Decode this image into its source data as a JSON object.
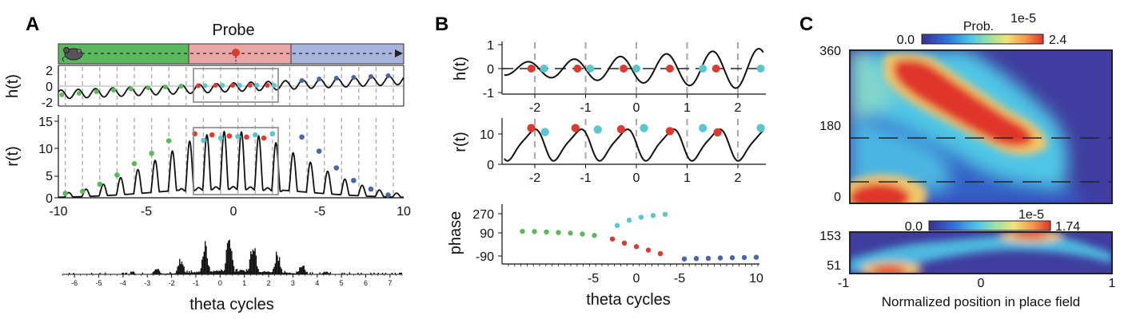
{
  "panels": {
    "A": {
      "label": "A",
      "track_title": "Probe",
      "h_ylabel": "h(t)",
      "r_ylabel": "r(t)",
      "xlabel": "theta cycles",
      "h_yticks": [
        "2",
        "0",
        "-2"
      ],
      "r_yticks": [
        "15",
        "10",
        "5",
        "0"
      ],
      "xticks": [
        "-10",
        "-5",
        "0",
        "-5",
        "10"
      ],
      "hist_xticks": [
        "-6",
        "-5",
        "-4",
        "-3",
        "-2",
        "-1",
        "0",
        "1",
        "2",
        "3",
        "4",
        "5",
        "6",
        "7"
      ]
    },
    "B": {
      "label": "B",
      "h_ylabel": "h(t)",
      "r_ylabel": "r(t)",
      "phase_ylabel": "phase",
      "xlabel": "theta cycles",
      "h_yticks": [
        "1",
        "0",
        "-1"
      ],
      "r_yticks": [
        "10",
        "0"
      ],
      "top_xticks": [
        "-2",
        "-1",
        "0",
        "1",
        "2"
      ],
      "phase_yticks": [
        "270",
        "90",
        "-90"
      ],
      "phase_xticks": [
        "-5",
        "0",
        "-5",
        "10"
      ]
    },
    "C": {
      "label": "C",
      "colorbar1": {
        "title": "Prob.",
        "exp": "1e-5",
        "min": "0.0",
        "max": "2.4"
      },
      "colorbar2": {
        "exp": "1e-5",
        "min": "0.0",
        "max": "1.74"
      },
      "top_yticks": [
        "360",
        "180",
        "0"
      ],
      "bottom_yticks": [
        "153",
        "51"
      ],
      "xticks": [
        "-1",
        "0",
        "1"
      ],
      "xlabel": "Normalized position in place field"
    }
  },
  "colors": {
    "green": "#5cb85c",
    "red": "#dd3a30",
    "cyan": "#5bc6cc",
    "blue": "#4a66a8",
    "track_green": "#5cb85c",
    "track_red": "#e8a7a4",
    "track_blue": "#a7b4dc"
  },
  "chart_data": [
    {
      "type": "line",
      "panel": "A-top",
      "ylabel": "h(t)",
      "ylim": [
        -2.5,
        2.5
      ],
      "xlim": [
        -10,
        10
      ],
      "series": [
        {
          "kind": "dots",
          "x": [
            -9.8,
            -8.8,
            -7.8,
            -6.8,
            -5.8,
            -4.8,
            -3.8,
            -2.9
          ],
          "y": [
            -1.1,
            -0.9,
            -0.7,
            -0.5,
            -0.35,
            -0.2,
            -0.1,
            0.0
          ],
          "color": "green"
        },
        {
          "kind": "dots",
          "x": [
            -1.9,
            -0.9,
            0.1,
            1.1,
            2.1
          ],
          "y": [
            0.05,
            0.1,
            0.1,
            0.1,
            0.1
          ],
          "color": "red"
        },
        {
          "kind": "dots",
          "x": [
            -1.5,
            -0.5,
            0.5,
            1.5,
            2.5
          ],
          "y": [
            0.05,
            0.1,
            0.1,
            0.1,
            0.1
          ],
          "color": "cyan"
        },
        {
          "kind": "dots",
          "x": [
            4.1,
            5.1,
            6.1,
            7.1,
            8.1,
            9.1
          ],
          "y": [
            0.7,
            0.9,
            1.0,
            1.1,
            1.2,
            1.3
          ],
          "color": "blue"
        }
      ]
    },
    {
      "type": "line",
      "panel": "A-middle",
      "ylabel": "r(t)",
      "ylim": [
        0,
        15
      ],
      "xlim": [
        -10,
        10
      ],
      "series": [
        {
          "kind": "dots",
          "x": [
            -9.6,
            -8.6,
            -7.6,
            -6.6,
            -5.6,
            -4.6,
            -3.6
          ],
          "y": [
            0.8,
            1.2,
            2.5,
            4.2,
            6.3,
            8.2,
            10.5
          ],
          "color": "green"
        },
        {
          "kind": "dots",
          "x": [
            -2.1,
            -1.1,
            -0.1,
            0.9,
            1.9
          ],
          "y": [
            11.8,
            11.6,
            11.4,
            11.2,
            11.0
          ],
          "color": "red"
        },
        {
          "kind": "dots",
          "x": [
            -1.6,
            -0.6,
            0.4,
            1.4,
            2.4
          ],
          "y": [
            10.6,
            11.0,
            11.3,
            11.6,
            11.8
          ],
          "color": "cyan"
        },
        {
          "kind": "dots",
          "x": [
            4.1,
            5.1,
            6.1,
            7.1,
            8.1,
            9.1
          ],
          "y": [
            11.2,
            8.6,
            5.5,
            3.2,
            1.6,
            0.5
          ],
          "color": "blue"
        }
      ]
    },
    {
      "type": "bar",
      "panel": "A-bottom",
      "xlabel": "theta cycles",
      "xlim": [
        -6.5,
        7.5
      ],
      "description_values": "spike histogram grouped in theta cycles, peaking at cycles 0 to 2"
    },
    {
      "type": "line",
      "panel": "B-top",
      "ylabel": "h(t)",
      "ylim": [
        -1,
        1
      ],
      "xlim": [
        -2.6,
        2.5
      ],
      "series": [
        {
          "kind": "dots",
          "x": [
            -2.07,
            -1.16,
            -0.25,
            0.66,
            1.57
          ],
          "y": [
            0,
            0,
            0,
            0,
            0
          ],
          "color": "red"
        },
        {
          "kind": "dots",
          "x": [
            -1.82,
            -0.91,
            0.0,
            1.31,
            2.45
          ],
          "y": [
            0,
            0,
            0,
            0,
            0
          ],
          "color": "cyan"
        }
      ]
    },
    {
      "type": "line",
      "panel": "B-middle",
      "ylabel": "r(t)",
      "ylim": [
        0,
        15
      ],
      "xlim": [
        -2.6,
        2.5
      ],
      "series": [
        {
          "kind": "dots",
          "x": [
            -2.07,
            -1.2,
            -0.3,
            0.66,
            1.6
          ],
          "y": [
            11.8,
            11.8,
            11.4,
            10.8,
            10.4
          ],
          "color": "red"
        },
        {
          "kind": "dots",
          "x": [
            -1.8,
            -0.76,
            0.15,
            1.31,
            2.45
          ],
          "y": [
            10.5,
            11.3,
            11.8,
            11.8,
            11.8
          ],
          "color": "cyan"
        }
      ]
    },
    {
      "type": "scatter",
      "panel": "B-bottom",
      "ylabel": "phase",
      "xlabel": "theta cycles",
      "xlim": [
        -10,
        10
      ],
      "ylim": [
        -160,
        320
      ],
      "series": [
        {
          "x": [
            -9.5,
            -8.5,
            -7.5,
            -6.5,
            -5.5,
            -4.5,
            -3.5
          ],
          "y": [
            120,
            118,
            115,
            110,
            105,
            97,
            85
          ],
          "color": "green"
        },
        {
          "x": [
            -2.0,
            -1.0,
            0.0,
            1.0,
            2.0
          ],
          "y": [
            55,
            20,
            -10,
            -40,
            -70
          ],
          "color": "red"
        },
        {
          "x": [
            -1.6,
            -0.6,
            0.4,
            1.4,
            2.4
          ],
          "y": [
            170,
            215,
            240,
            255,
            265
          ],
          "color": "cyan"
        },
        {
          "x": [
            4.0,
            5.0,
            6.0,
            7.0,
            8.0,
            9.0,
            10.0
          ],
          "y": [
            -115,
            -112,
            -110,
            -107,
            -105,
            -103,
            -101
          ],
          "color": "blue"
        }
      ]
    },
    {
      "type": "heatmap",
      "panel": "C-top",
      "xlim": [
        -1,
        1
      ],
      "ylim": [
        0,
        360
      ],
      "colorbar": [
        0,
        2.4
      ]
    },
    {
      "type": "heatmap",
      "panel": "C-bottom",
      "xlim": [
        -1,
        1
      ],
      "colorbar": [
        0,
        1.74
      ]
    }
  ]
}
